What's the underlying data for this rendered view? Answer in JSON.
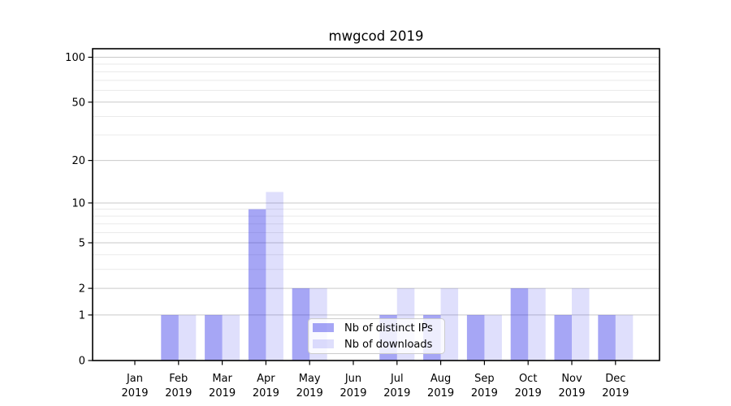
{
  "chart_data": {
    "type": "bar",
    "title": "mwgcod 2019",
    "categories": [
      "Jan",
      "Feb",
      "Mar",
      "Apr",
      "May",
      "Jun",
      "Jul",
      "Aug",
      "Sep",
      "Oct",
      "Nov",
      "Dec"
    ],
    "category_year": "2019",
    "series": [
      {
        "name": "Nb of distinct IPs",
        "values": [
          0,
          1,
          1,
          9,
          2,
          0,
          1,
          1,
          1,
          2,
          1,
          1
        ],
        "color": "rgba(42,42,232,0.42)"
      },
      {
        "name": "Nb of downloads",
        "values": [
          0,
          1,
          1,
          12,
          2,
          0,
          2,
          2,
          1,
          2,
          2,
          1
        ],
        "color": "rgba(42,42,232,0.15)"
      }
    ],
    "yscale": "log1p",
    "ylim": [
      0,
      114
    ],
    "yticks": [
      0,
      1,
      2,
      5,
      10,
      20,
      50,
      100
    ],
    "yticks_minor": [
      3,
      4,
      6,
      7,
      8,
      9,
      30,
      40,
      60,
      70,
      80,
      90
    ],
    "grid": true,
    "legend_position": "lower center",
    "colors": {
      "grid_major": "#c9c9c9",
      "grid_minor": "#eaeaea",
      "axis": "#000000"
    }
  }
}
